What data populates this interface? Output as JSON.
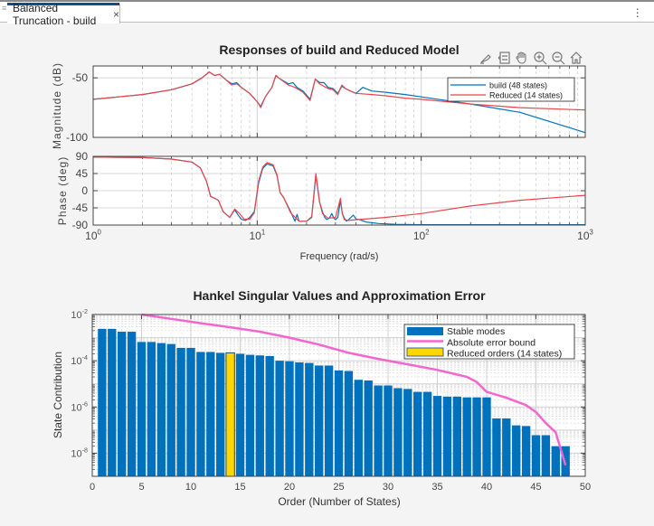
{
  "window": {
    "tab_title": "Balanced Truncation - build",
    "close_icon": "close-icon",
    "menu_icon": "kebab-menu-icon",
    "grip_icon": "grip-icon"
  },
  "toolbar": {
    "icons": [
      "brush-icon",
      "legend-toggle-icon",
      "pan-hand-icon",
      "zoom-in-icon",
      "zoom-out-icon",
      "home-icon"
    ]
  },
  "chart_data": [
    {
      "type": "line",
      "title": "Responses of build and Reduced Model",
      "xlabel": "Frequency (rad/s)",
      "ylabel": "Magnitude (dB)",
      "xscale": "log",
      "xlim": [
        1,
        1000
      ],
      "ylim": [
        -100,
        -40
      ],
      "yticks": [
        -50,
        -100
      ],
      "ytick_labels": [
        "-50",
        "-100"
      ],
      "grid": true,
      "legend": {
        "placement": "top-right",
        "entries": [
          "build (48 states)",
          "Reduced (14 states)"
        ]
      },
      "series": [
        {
          "name": "build (48 states)",
          "color": "#0072BD",
          "x": [
            1,
            2,
            3,
            4,
            4.6,
            5.1,
            5.5,
            5.9,
            6.5,
            7.0,
            7.5,
            8.0,
            9.0,
            10.0,
            10.5,
            11.2,
            12.3,
            13.0,
            13.5,
            15.5,
            16.5,
            17.5,
            19.0,
            21.0,
            22.6,
            24.0,
            25.5,
            27.0,
            29.0,
            31.0,
            32.8,
            34.5,
            37.0,
            40.0,
            44.0,
            50.0,
            60.0,
            80.0,
            100.0,
            200.0,
            400.0,
            1000.0
          ],
          "y": [
            -68,
            -64,
            -60,
            -55,
            -50,
            -45,
            -48,
            -47,
            -52,
            -55,
            -54,
            -58,
            -63,
            -70,
            -74,
            -66,
            -58,
            -48,
            -50,
            -55,
            -54,
            -58,
            -61,
            -68,
            -51,
            -54,
            -54,
            -58,
            -59,
            -63,
            -57,
            -59,
            -61,
            -63,
            -58,
            -61,
            -62,
            -64,
            -66,
            -72,
            -79,
            -96
          ]
        },
        {
          "name": "Reduced (14 states)",
          "color": "#E8474A",
          "x": [
            1,
            2,
            3,
            4,
            4.6,
            5.1,
            5.5,
            5.9,
            6.5,
            7.0,
            7.5,
            8.0,
            9.0,
            10.0,
            10.5,
            11.2,
            12.3,
            13.0,
            13.5,
            15.5,
            17.0,
            19.0,
            21.0,
            22.6,
            24.0,
            27.0,
            29.0,
            31.0,
            32.8,
            34.5,
            37.0,
            40.0,
            50.0,
            60.0,
            80.0,
            100.0,
            200.0,
            400.0,
            1000.0
          ],
          "y": [
            -68,
            -64,
            -60,
            -55,
            -50,
            -45,
            -48,
            -47,
            -52,
            -56,
            -55,
            -58,
            -63,
            -70,
            -75,
            -66,
            -58,
            -48,
            -50,
            -56,
            -58,
            -62,
            -69,
            -51,
            -55,
            -59,
            -60,
            -64,
            -56,
            -59,
            -61,
            -63,
            -64,
            -65,
            -67,
            -68,
            -72,
            -75,
            -77
          ]
        }
      ]
    },
    {
      "type": "line",
      "title": "",
      "xlabel": "Frequency (rad/s)",
      "ylabel": "Phase (deg)",
      "xscale": "log",
      "xlim": [
        1,
        1000
      ],
      "ylim": [
        -90,
        90
      ],
      "yticks": [
        90,
        45,
        0,
        -45,
        -90
      ],
      "ytick_labels": [
        "90",
        "45",
        "0",
        "-45",
        "-90"
      ],
      "xtick_labels": [
        "10^0",
        "10^1",
        "10^2",
        "10^3"
      ],
      "grid": true,
      "series": [
        {
          "name": "build (48 states)",
          "color": "#0072BD",
          "x": [
            1,
            2,
            3,
            4,
            4.5,
            4.9,
            5.2,
            5.5,
            5.8,
            6.2,
            6.8,
            7.3,
            7.6,
            8.0,
            8.5,
            9.0,
            9.6,
            10.2,
            10.8,
            11.5,
            12.5,
            13.2,
            13.8,
            14.5,
            16.0,
            17.0,
            17.5,
            18.0,
            20.0,
            21.5,
            22.8,
            24.0,
            25.0,
            25.8,
            26.5,
            27.5,
            28.5,
            29.3,
            30.0,
            31.0,
            32.2,
            33.0,
            34.0,
            35.0,
            36.5,
            38.5,
            40.0,
            42.0,
            46.0,
            55.0,
            70.0,
            100.0,
            1000.0
          ],
          "y": [
            88,
            87,
            83,
            75,
            60,
            25,
            -15,
            -20,
            -25,
            -55,
            -70,
            -50,
            -62,
            -75,
            -78,
            -70,
            -55,
            20,
            58,
            70,
            65,
            40,
            -5,
            -18,
            -55,
            -80,
            -62,
            -80,
            -80,
            -70,
            40,
            -30,
            -55,
            -70,
            -75,
            -72,
            -60,
            -72,
            -76,
            -70,
            -25,
            -60,
            -72,
            -80,
            -74,
            -64,
            -74,
            -76,
            -82,
            -86,
            -88,
            -89,
            -89
          ]
        },
        {
          "name": "Reduced (14 states)",
          "color": "#E8474A",
          "x": [
            1,
            2,
            3,
            4,
            4.5,
            4.9,
            5.2,
            5.5,
            5.8,
            6.2,
            6.8,
            7.3,
            7.8,
            8.3,
            9.0,
            9.6,
            10.2,
            10.8,
            11.5,
            12.5,
            13.2,
            13.8,
            14.5,
            16.0,
            18.0,
            20.0,
            21.5,
            22.8,
            24.0,
            25.0,
            27.0,
            30.0,
            32.2,
            33.0,
            34.0,
            36.0,
            40.0,
            60.0,
            100.0,
            200.0,
            400.0,
            1000.0
          ],
          "y": [
            88,
            87,
            83,
            75,
            60,
            25,
            -15,
            -20,
            -25,
            -55,
            -70,
            -48,
            -60,
            -74,
            -75,
            -58,
            25,
            62,
            74,
            68,
            42,
            -5,
            -18,
            -58,
            -80,
            -80,
            -68,
            45,
            -30,
            -60,
            -72,
            -70,
            -20,
            -60,
            -76,
            -78,
            -76,
            -70,
            -60,
            -40,
            -25,
            -12
          ]
        }
      ]
    },
    {
      "type": "bar",
      "title": "Hankel Singular Values and Approximation Error",
      "xlabel": "Order (Number of States)",
      "ylabel": "State Contribution",
      "yscale": "log",
      "xlim": [
        0,
        50
      ],
      "ylim": [
        1e-09,
        0.01
      ],
      "xticks": [
        0,
        5,
        10,
        15,
        20,
        25,
        30,
        35,
        40,
        45,
        50
      ],
      "yticks": [
        0.01,
        0.0001,
        1e-06,
        1e-08
      ],
      "ytick_labels": [
        "10^-2",
        "10^-4",
        "10^-6",
        "10^-8"
      ],
      "grid": true,
      "legend": {
        "placement": "top-right",
        "entries": [
          "Stable modes",
          "Absolute error bound",
          "Reduced orders (14 states)"
        ]
      },
      "highlight_order": 14,
      "colors": {
        "bars": "#0072BD",
        "highlight": "#FFD700",
        "error_bound": "#F266D0"
      },
      "categories": [
        1,
        2,
        3,
        4,
        5,
        6,
        7,
        8,
        9,
        10,
        11,
        12,
        13,
        14,
        15,
        16,
        17,
        18,
        19,
        20,
        21,
        22,
        23,
        24,
        25,
        26,
        27,
        28,
        29,
        30,
        31,
        32,
        33,
        34,
        35,
        36,
        37,
        38,
        39,
        40,
        41,
        42,
        43,
        44,
        45,
        46,
        47,
        48
      ],
      "values": [
        0.0024,
        0.0024,
        0.0018,
        0.0018,
        0.00065,
        0.00065,
        0.00058,
        0.00053,
        0.00036,
        0.00036,
        0.00024,
        0.00024,
        0.00022,
        0.00022,
        0.0002,
        0.00018,
        0.00017,
        0.00016,
        0.0001,
        9.5e-05,
        8.5e-05,
        8e-05,
        6.2e-05,
        6.2e-05,
        3.8e-05,
        3.6e-05,
        1.5e-05,
        1.4e-05,
        8.5e-06,
        8.5e-06,
        6.5e-06,
        6e-06,
        4.5e-06,
        4.5e-06,
        3e-06,
        2.8e-06,
        2.8e-06,
        2.6e-06,
        2.6e-06,
        2.6e-06,
        3.2e-07,
        3.2e-07,
        1.6e-07,
        1.5e-07,
        6e-08,
        6e-08,
        2e-08,
        2e-08
      ],
      "error_bound": {
        "name": "Absolute error bound",
        "x": [
          5,
          8,
          11,
          14,
          17,
          20,
          23,
          26,
          29,
          32,
          35,
          38,
          39,
          40,
          42,
          44,
          45,
          46,
          47,
          48
        ],
        "y": [
          0.01,
          0.0065,
          0.0042,
          0.0028,
          0.0018,
          0.001,
          0.0005,
          0.00022,
          0.00012,
          7e-05,
          4e-05,
          2e-05,
          1.2e-05,
          4.5e-06,
          2.5e-06,
          1.2e-06,
          6e-07,
          2e-07,
          8e-08,
          3e-09
        ]
      }
    }
  ]
}
